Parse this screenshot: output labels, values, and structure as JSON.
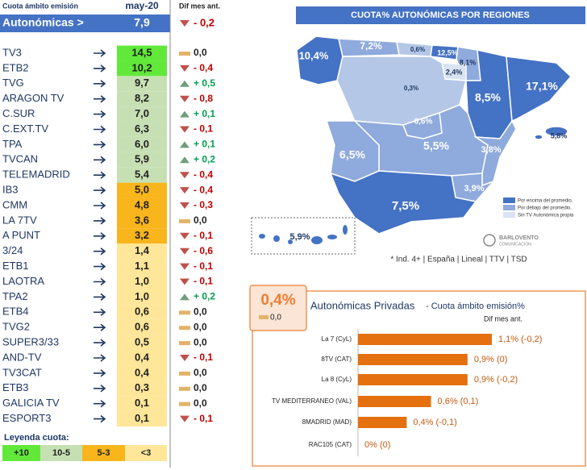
{
  "table": {
    "header": {
      "label": "Cuota ámbito emisión",
      "period": "may-20",
      "diff": "Dif mes ant."
    },
    "summary": {
      "name": "Autonómicas >",
      "share": "7,9",
      "diff": "- 0,2"
    },
    "rows": [
      {
        "name": "TV3",
        "share": "14,5",
        "diff": "0,0",
        "color": "#62e83a"
      },
      {
        "name": "ETB2",
        "share": "10,2",
        "diff": "- 0,4",
        "color": "#62e83a"
      },
      {
        "name": "TVG",
        "share": "9,7",
        "diff": "+ 0,5",
        "color": "#c6e0b4"
      },
      {
        "name": "ARAGON TV",
        "share": "8,2",
        "diff": "- 0,8",
        "color": "#c6e0b4"
      },
      {
        "name": "C.SUR",
        "share": "7,0",
        "diff": "+ 0,1",
        "color": "#c6e0b4"
      },
      {
        "name": "C.EXT.TV",
        "share": "6,3",
        "diff": "- 0,1",
        "color": "#c6e0b4"
      },
      {
        "name": "TPA",
        "share": "6,0",
        "diff": "+ 0,1",
        "color": "#c6e0b4"
      },
      {
        "name": "TVCAN",
        "share": "5,9",
        "diff": "+ 0,2",
        "color": "#c6e0b4"
      },
      {
        "name": "TELEMADRID",
        "share": "5,4",
        "diff": "- 0,4",
        "color": "#c6e0b4"
      },
      {
        "name": "IB3",
        "share": "5,0",
        "diff": "- 0,4",
        "color": "#f8b51c"
      },
      {
        "name": "CMM",
        "share": "4,8",
        "diff": "- 0,3",
        "color": "#f8b51c"
      },
      {
        "name": "LA 7TV",
        "share": "3,6",
        "diff": "0,0",
        "color": "#f8b51c"
      },
      {
        "name": "A PUNT",
        "share": "3,2",
        "diff": "- 0,1",
        "color": "#f8b51c"
      },
      {
        "name": "3/24",
        "share": "1,4",
        "diff": "- 0,6",
        "color": "#ffe699"
      },
      {
        "name": "ETB1",
        "share": "1,1",
        "diff": "- 0,1",
        "color": "#ffe699"
      },
      {
        "name": "LAOTRA",
        "share": "1,0",
        "diff": "- 0,1",
        "color": "#ffe699"
      },
      {
        "name": "TPA2",
        "share": "1,0",
        "diff": "+ 0,2",
        "color": "#ffe699"
      },
      {
        "name": "ETB4",
        "share": "0,6",
        "diff": "0,0",
        "color": "#ffe699"
      },
      {
        "name": "TVG2",
        "share": "0,6",
        "diff": "0,0",
        "color": "#ffe699"
      },
      {
        "name": "SUPER3/33",
        "share": "0,5",
        "diff": "0,0",
        "color": "#ffe699"
      },
      {
        "name": "AND-TV",
        "share": "0,4",
        "diff": "- 0,1",
        "color": "#ffe699"
      },
      {
        "name": "TV3CAT",
        "share": "0,4",
        "diff": "0,0",
        "color": "#ffe699"
      },
      {
        "name": "ETB3",
        "share": "0,3",
        "diff": "0,0",
        "color": "#ffe699"
      },
      {
        "name": "GALICIA TV",
        "share": "0,1",
        "diff": "0,0",
        "color": "#ffe699"
      },
      {
        "name": "ESPORT3",
        "share": "0,1",
        "diff": "- 0,1",
        "color": "#ffe699"
      }
    ]
  },
  "legend": {
    "title": "Leyenda cuota:",
    "items": [
      {
        "label": "+10",
        "color": "#62e83a"
      },
      {
        "label": "10-5",
        "color": "#c6e0b4"
      },
      {
        "label": "5-3",
        "color": "#f8b51c"
      },
      {
        "label": "<3",
        "color": "#ffe699"
      }
    ]
  },
  "map": {
    "title": "CUOTA% AUTONÓMICAS POR REGIONES",
    "labels": [
      "10,4%",
      "7,2%",
      "0,6%",
      "12,5%",
      "8,1%",
      "2,4%",
      "0,3%",
      "17,1%",
      "8,5%",
      "6,6%",
      "5,5%",
      "6,5%",
      "3,8%",
      "5,8%",
      "3,9%",
      "7,5%",
      "5,9%"
    ],
    "legend": [
      "Por encima del promedio.",
      "Por debajo del promedio.",
      "Sin TV Autonómica propia"
    ],
    "logo": [
      "BARLOVENTO",
      "COMUNICACIÓN"
    ],
    "footnote": "* Ind. 4+ | España | Lineal | TTV | TSD"
  },
  "privadas": {
    "share": "0,4%",
    "diff": "0,0",
    "subtitle": "- Cuota ámbito emisión%",
    "diff_header": "Dif mes ant."
  },
  "chart_data": {
    "type": "bar",
    "orientation": "horizontal",
    "title": "Autonómicas Privadas",
    "categories": [
      "La 7 (CyL)",
      "8TV (CAT)",
      "La 8 (CyL)",
      "TV MEDITERRANEO (VAL)",
      "8MADRID (MAD)",
      "RAC105 (CAT)"
    ],
    "values": [
      1.1,
      0.9,
      0.9,
      0.6,
      0.4,
      0
    ],
    "value_labels": [
      "1,1% (-0,2)",
      "0,9% (0)",
      "0,9% (-0,2)",
      "0,6% (0,1)",
      "0,4% (-0,1)",
      "0% (0)"
    ],
    "color": "#e4700f"
  }
}
